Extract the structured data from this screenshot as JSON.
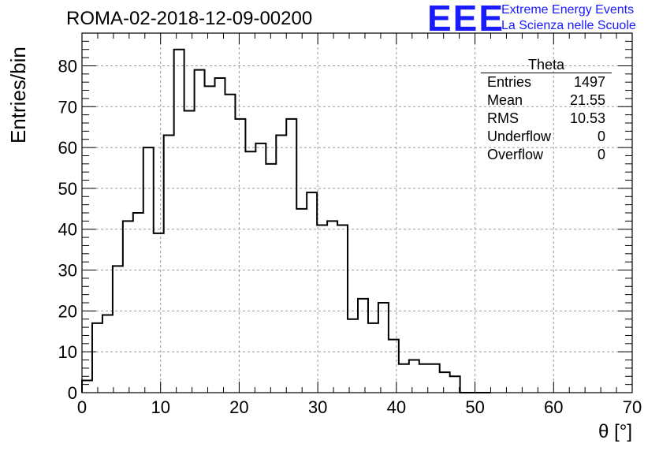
{
  "title": "ROMA-02-2018-12-09-00200",
  "logo": {
    "mark": "EEE",
    "line1": "Extreme Energy Events",
    "line2": "La Scienza nelle Scuole",
    "color": "#1a1aff"
  },
  "stats_box": {
    "name": "Theta",
    "rows": [
      {
        "label": "Entries",
        "value": "1497"
      },
      {
        "label": "Mean",
        "value": "21.55"
      },
      {
        "label": "RMS",
        "value": "10.53"
      },
      {
        "label": "Underflow",
        "value": "0"
      },
      {
        "label": "Overflow",
        "value": "0"
      }
    ]
  },
  "chart_data": {
    "type": "bar",
    "histogram_style": "step",
    "xlabel": "θ [°]",
    "ylabel": "Entries/bin",
    "xlim": [
      0,
      70
    ],
    "ylim": [
      0,
      88
    ],
    "xticks": [
      0,
      10,
      20,
      30,
      40,
      50,
      60,
      70
    ],
    "yticks": [
      0,
      10,
      20,
      30,
      40,
      50,
      60,
      70,
      80
    ],
    "grid": true,
    "bin_edges": [
      0,
      1.3,
      2.6,
      3.9,
      5.2,
      6.5,
      7.8,
      9.1,
      10.4,
      11.7,
      13.0,
      14.3,
      15.6,
      16.9,
      18.2,
      19.5,
      20.8,
      22.1,
      23.4,
      24.7,
      26.0,
      27.3,
      28.6,
      29.9,
      31.2,
      32.5,
      33.8,
      35.1,
      36.4,
      37.7,
      39.0,
      40.3,
      41.6,
      42.9,
      44.2,
      45.5,
      46.8,
      48.1,
      49.4,
      50.7,
      52.0
    ],
    "values": [
      3,
      17,
      19,
      31,
      42,
      44,
      60,
      39,
      63,
      84,
      69,
      79,
      75,
      77,
      73,
      67,
      59,
      61,
      56,
      63,
      67,
      45,
      49,
      41,
      42,
      41,
      18,
      23,
      17,
      22,
      13,
      7,
      8,
      7,
      7,
      5,
      4,
      0,
      0,
      0
    ]
  }
}
